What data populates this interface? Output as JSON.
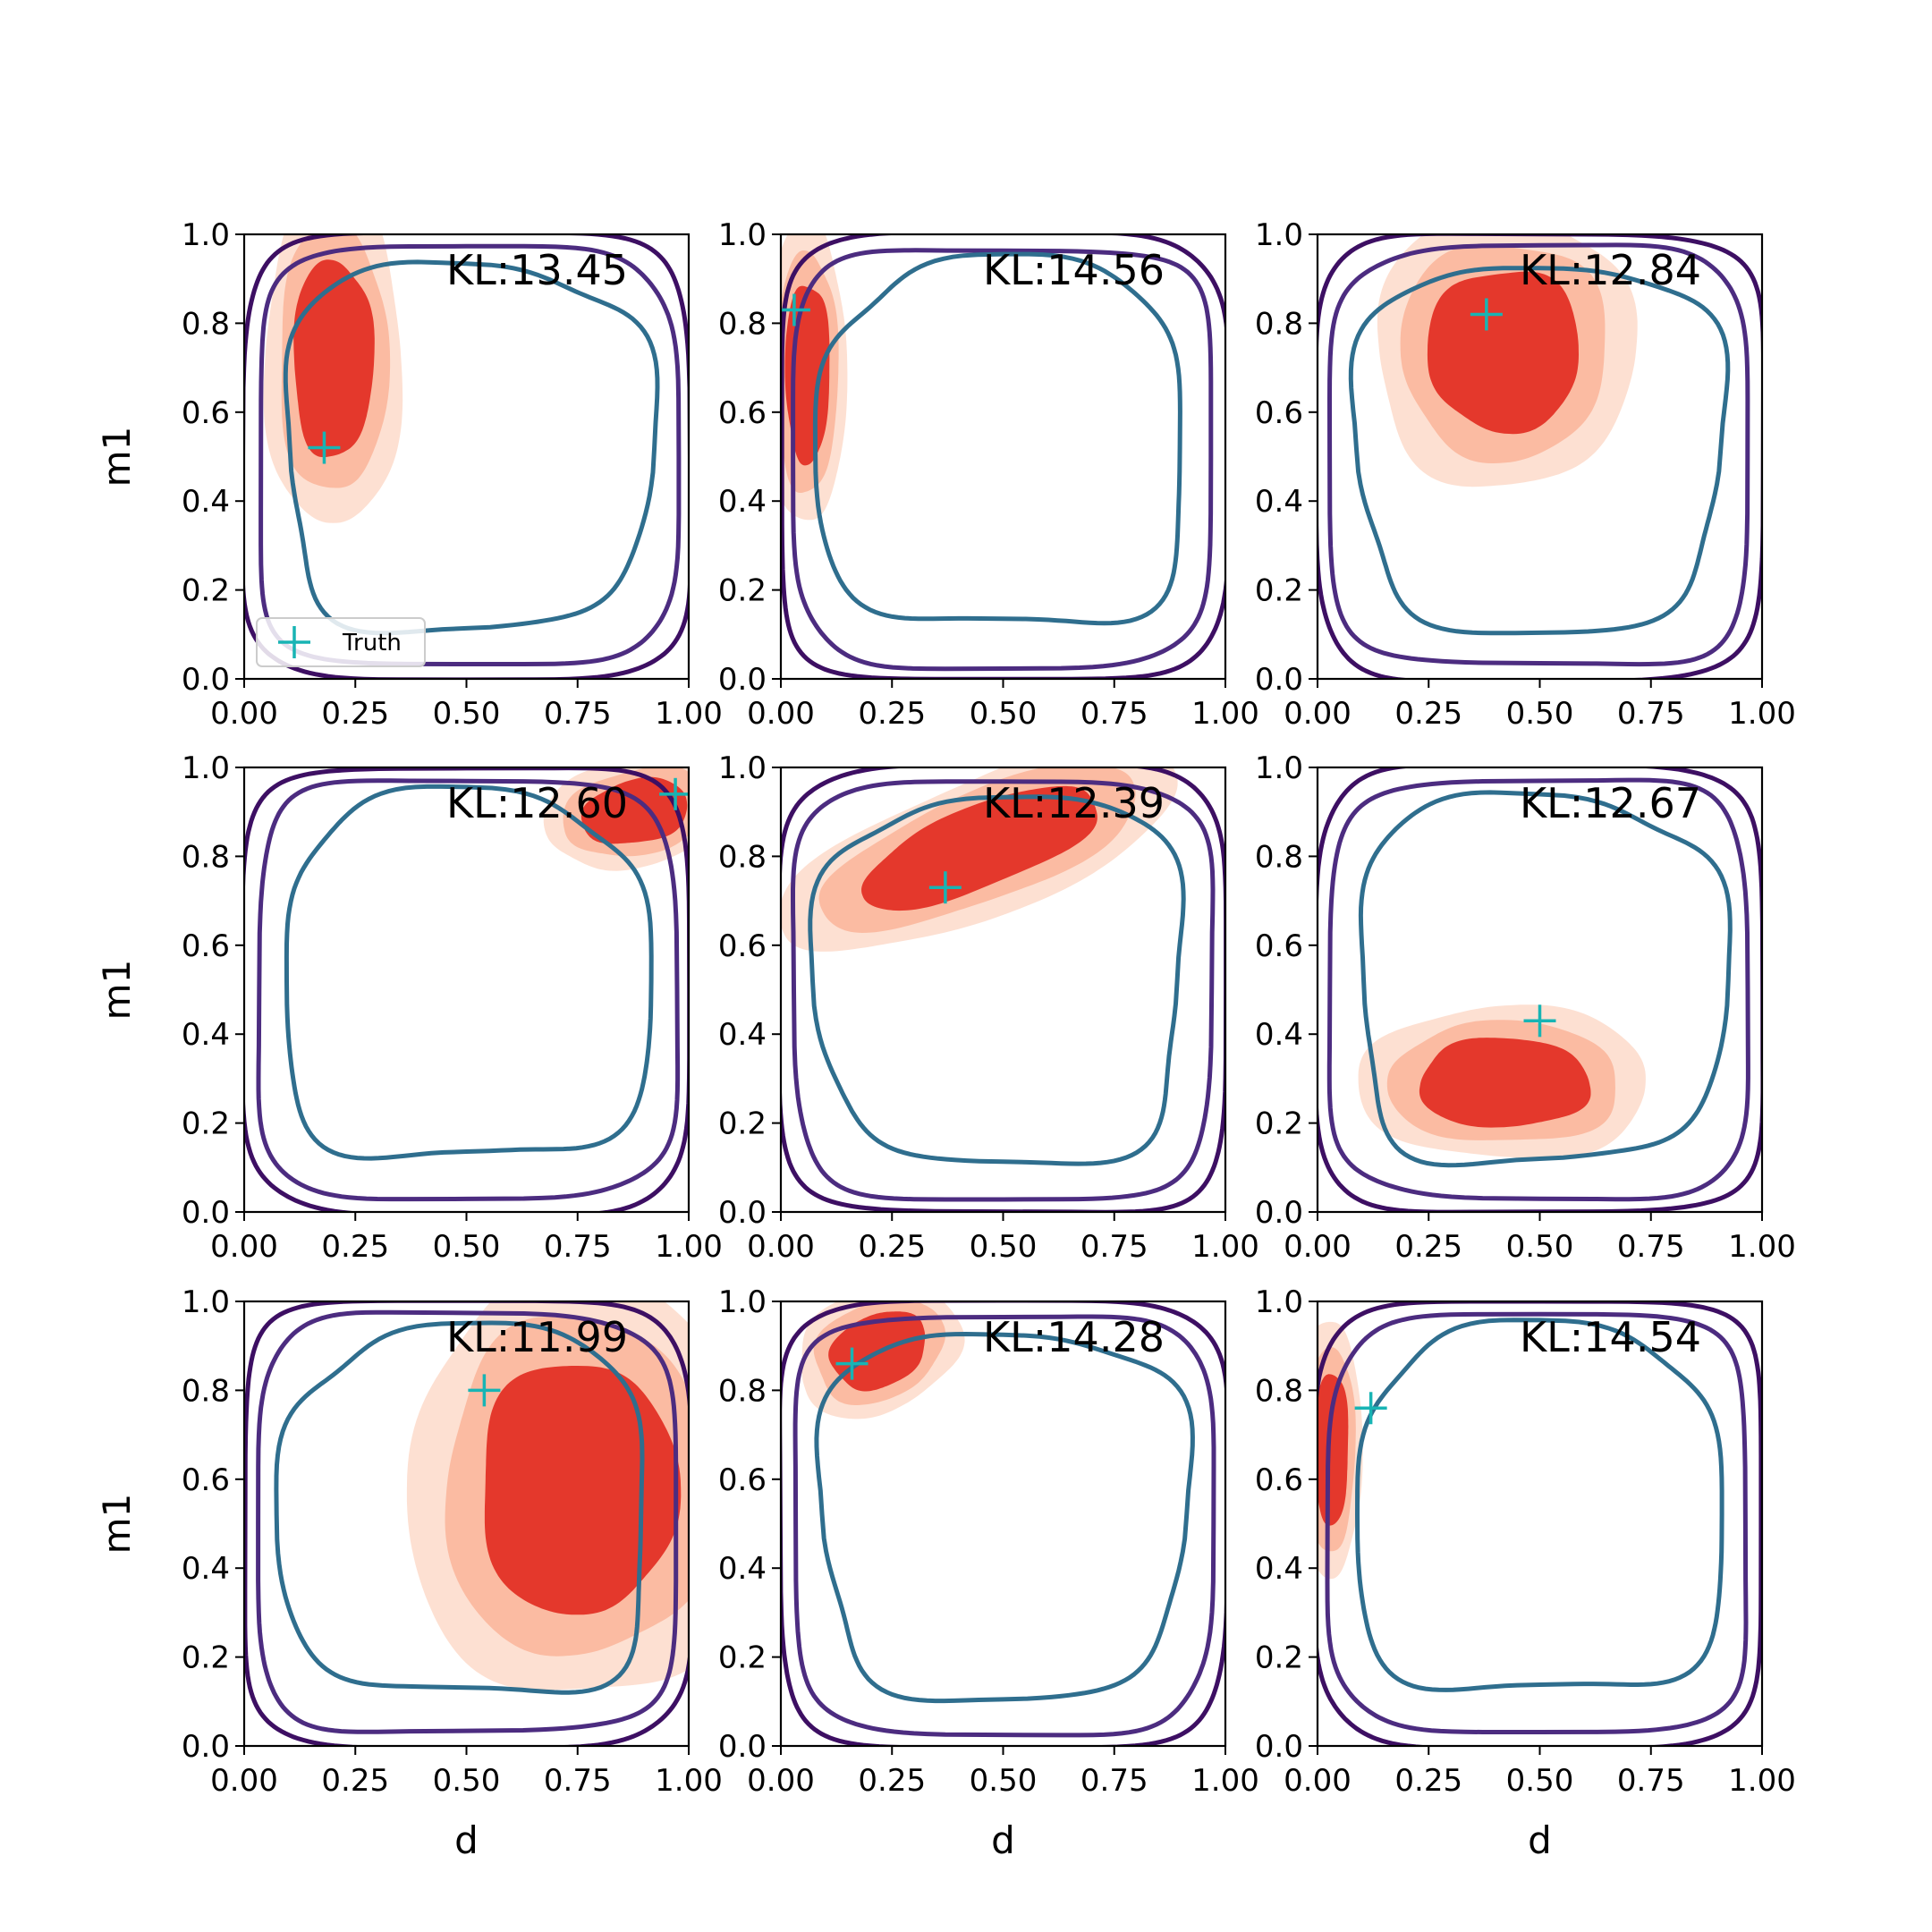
{
  "figure": {
    "colors": {
      "posterior_outer": "#fde0d2",
      "posterior_mid": "#fbbba2",
      "posterior_inner": "#e4382c",
      "prior_outer": "#3d0f63",
      "prior_mid": "#4c2c80",
      "prior_inner": "#2f6e8e",
      "truth": "#18b4b4",
      "axes": "#000000"
    },
    "legend": {
      "label": "Truth",
      "marker": "plus-icon",
      "location": "lower left",
      "panel": 0
    }
  },
  "chart_data": [
    {
      "type": "scatter",
      "title": "",
      "kl_label": "KL:13.45",
      "xlabel": "",
      "ylabel": "m1",
      "xlim": [
        0,
        1
      ],
      "ylim": [
        0,
        1
      ],
      "xticks": [
        "0.00",
        "0.25",
        "0.50",
        "0.75",
        "1.00"
      ],
      "yticks": [
        "0.0",
        "0.2",
        "0.4",
        "0.6",
        "0.8",
        "1.0"
      ],
      "truth": {
        "x": 0.18,
        "y": 0.52
      },
      "posterior_center": {
        "x": 0.2,
        "y": 0.72
      },
      "posterior_spread": {
        "x": 0.09,
        "y": 0.22
      },
      "posterior_tilt": 0,
      "grid": false
    },
    {
      "type": "scatter",
      "title": "",
      "kl_label": "KL:14.56",
      "xlabel": "",
      "ylabel": "",
      "xlim": [
        0,
        1
      ],
      "ylim": [
        0,
        1
      ],
      "xticks": [
        "0.00",
        "0.25",
        "0.50",
        "0.75",
        "1.00"
      ],
      "yticks": [
        "0.0",
        "0.2",
        "0.4",
        "0.6",
        "0.8",
        "1.0"
      ],
      "truth": {
        "x": 0.03,
        "y": 0.83
      },
      "posterior_center": {
        "x": 0.06,
        "y": 0.69
      },
      "posterior_spread": {
        "x": 0.05,
        "y": 0.2
      },
      "posterior_tilt": 0,
      "grid": false
    },
    {
      "type": "scatter",
      "title": "",
      "kl_label": "KL:12.84",
      "xlabel": "",
      "ylabel": "",
      "xlim": [
        0,
        1
      ],
      "ylim": [
        0,
        1
      ],
      "xticks": [
        "0.00",
        "0.25",
        "0.50",
        "0.75",
        "1.00"
      ],
      "yticks": [
        "0.0",
        "0.2",
        "0.4",
        "0.6",
        "0.8",
        "1.0"
      ],
      "truth": {
        "x": 0.38,
        "y": 0.82
      },
      "posterior_center": {
        "x": 0.42,
        "y": 0.74
      },
      "posterior_spread": {
        "x": 0.17,
        "y": 0.18
      },
      "posterior_tilt": 0,
      "grid": false
    },
    {
      "type": "scatter",
      "title": "",
      "kl_label": "KL:12.60",
      "xlabel": "",
      "ylabel": "m1",
      "xlim": [
        0,
        1
      ],
      "ylim": [
        0,
        1
      ],
      "xticks": [
        "0.00",
        "0.25",
        "0.50",
        "0.75",
        "1.00"
      ],
      "yticks": [
        "0.0",
        "0.2",
        "0.4",
        "0.6",
        "0.8",
        "1.0"
      ],
      "truth": {
        "x": 0.97,
        "y": 0.94
      },
      "posterior_center": {
        "x": 0.88,
        "y": 0.9
      },
      "posterior_spread": {
        "x": 0.12,
        "y": 0.07
      },
      "posterior_tilt": -12,
      "grid": false
    },
    {
      "type": "scatter",
      "title": "",
      "kl_label": "KL:12.39",
      "xlabel": "",
      "ylabel": "",
      "xlim": [
        0,
        1
      ],
      "ylim": [
        0,
        1
      ],
      "xticks": [
        "0.00",
        "0.25",
        "0.50",
        "0.75",
        "1.00"
      ],
      "yticks": [
        "0.0",
        "0.2",
        "0.4",
        "0.6",
        "0.8",
        "1.0"
      ],
      "truth": {
        "x": 0.37,
        "y": 0.73
      },
      "posterior_center": {
        "x": 0.45,
        "y": 0.82
      },
      "posterior_spread": {
        "x": 0.28,
        "y": 0.09
      },
      "posterior_tilt": -22,
      "grid": false
    },
    {
      "type": "scatter",
      "title": "",
      "kl_label": "KL:12.67",
      "xlabel": "",
      "ylabel": "",
      "xlim": [
        0,
        1
      ],
      "ylim": [
        0,
        1
      ],
      "xticks": [
        "0.00",
        "0.25",
        "0.50",
        "0.75",
        "1.00"
      ],
      "yticks": [
        "0.0",
        "0.2",
        "0.4",
        "0.6",
        "0.8",
        "1.0"
      ],
      "truth": {
        "x": 0.5,
        "y": 0.43
      },
      "posterior_center": {
        "x": 0.42,
        "y": 0.29
      },
      "posterior_spread": {
        "x": 0.19,
        "y": 0.1
      },
      "posterior_tilt": 0,
      "grid": false
    },
    {
      "type": "scatter",
      "title": "",
      "kl_label": "KL:11.99",
      "xlabel": "d",
      "ylabel": "m1",
      "xlim": [
        0,
        1
      ],
      "ylim": [
        0,
        1
      ],
      "xticks": [
        "0.00",
        "0.25",
        "0.50",
        "0.75",
        "1.00"
      ],
      "yticks": [
        "0.0",
        "0.2",
        "0.4",
        "0.6",
        "0.8",
        "1.0"
      ],
      "truth": {
        "x": 0.54,
        "y": 0.8
      },
      "posterior_center": {
        "x": 0.75,
        "y": 0.58
      },
      "posterior_spread": {
        "x": 0.22,
        "y": 0.28
      },
      "posterior_tilt": 0,
      "grid": false
    },
    {
      "type": "scatter",
      "title": "",
      "kl_label": "KL:14.28",
      "xlabel": "d",
      "ylabel": "",
      "xlim": [
        0,
        1
      ],
      "ylim": [
        0,
        1
      ],
      "xticks": [
        "0.00",
        "0.25",
        "0.50",
        "0.75",
        "1.00"
      ],
      "yticks": [
        "0.0",
        "0.2",
        "0.4",
        "0.6",
        "0.8",
        "1.0"
      ],
      "truth": {
        "x": 0.16,
        "y": 0.86
      },
      "posterior_center": {
        "x": 0.22,
        "y": 0.89
      },
      "posterior_spread": {
        "x": 0.11,
        "y": 0.08
      },
      "posterior_tilt": -25,
      "grid": false
    },
    {
      "type": "scatter",
      "title": "",
      "kl_label": "KL:14.54",
      "xlabel": "d",
      "ylabel": "",
      "xlim": [
        0,
        1
      ],
      "ylim": [
        0,
        1
      ],
      "xticks": [
        "0.00",
        "0.25",
        "0.50",
        "0.75",
        "1.00"
      ],
      "yticks": [
        "0.0",
        "0.2",
        "0.4",
        "0.6",
        "0.8",
        "1.0"
      ],
      "truth": {
        "x": 0.12,
        "y": 0.76
      },
      "posterior_center": {
        "x": 0.03,
        "y": 0.67
      },
      "posterior_spread": {
        "x": 0.04,
        "y": 0.17
      },
      "posterior_tilt": 0,
      "grid": false
    }
  ]
}
